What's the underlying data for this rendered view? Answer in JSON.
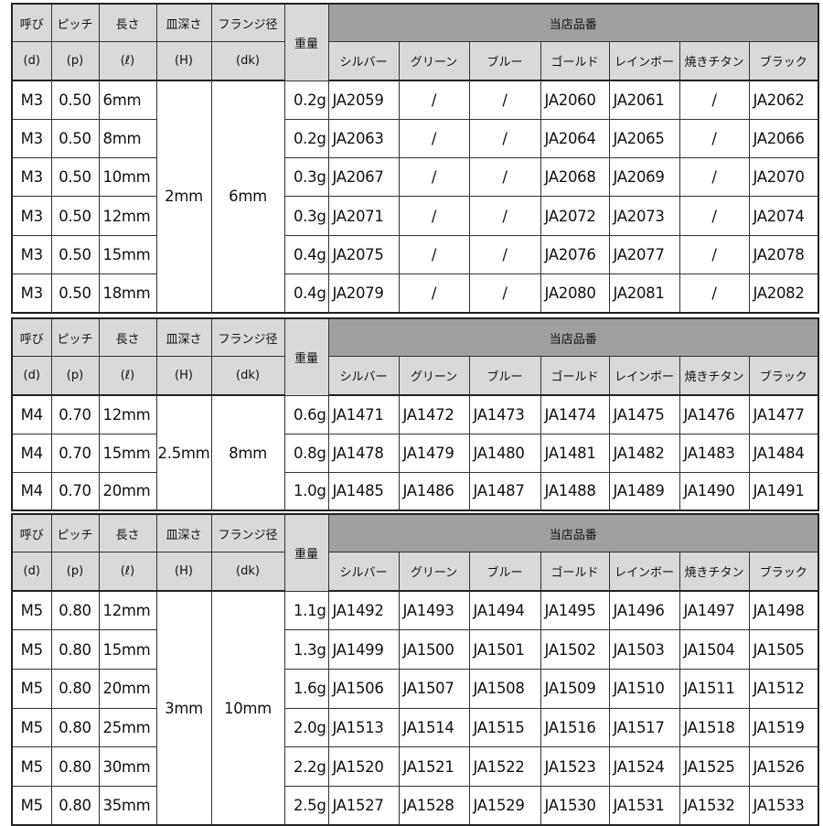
{
  "header": {
    "nominal": "呼び",
    "nominal_sym": "(d)",
    "pitch": "ピッチ",
    "pitch_sym": "(p)",
    "length": "長さ",
    "length_sym": "(ℓ)",
    "depth": "皿深さ",
    "depth_sym": "(H)",
    "flange": "フランジ径",
    "flange_sym": "(dk)",
    "weight": "重量",
    "store_code": "当店品番",
    "colors": [
      "シルバー",
      "グリーン",
      "ブルー",
      "ゴールド",
      "レインボー",
      "焼きチタン",
      "ブラック"
    ]
  },
  "colors": {
    "header_light": "#d9d9d9",
    "header_dark": "#a0a0a0",
    "border": "#222222"
  },
  "tables": [
    {
      "depth": "2mm",
      "flange": "6mm",
      "rows": [
        {
          "d": "M3",
          "p": "0.50",
          "l": "6mm",
          "w": "0.2g",
          "codes": [
            "JA2059",
            "/",
            "/",
            "JA2060",
            "JA2061",
            "/",
            "JA2062"
          ]
        },
        {
          "d": "M3",
          "p": "0.50",
          "l": "8mm",
          "w": "0.2g",
          "codes": [
            "JA2063",
            "/",
            "/",
            "JA2064",
            "JA2065",
            "/",
            "JA2066"
          ]
        },
        {
          "d": "M3",
          "p": "0.50",
          "l": "10mm",
          "w": "0.3g",
          "codes": [
            "JA2067",
            "/",
            "/",
            "JA2068",
            "JA2069",
            "/",
            "JA2070"
          ]
        },
        {
          "d": "M3",
          "p": "0.50",
          "l": "12mm",
          "w": "0.3g",
          "codes": [
            "JA2071",
            "/",
            "/",
            "JA2072",
            "JA2073",
            "/",
            "JA2074"
          ]
        },
        {
          "d": "M3",
          "p": "0.50",
          "l": "15mm",
          "w": "0.4g",
          "codes": [
            "JA2075",
            "/",
            "/",
            "JA2076",
            "JA2077",
            "/",
            "JA2078"
          ]
        },
        {
          "d": "M3",
          "p": "0.50",
          "l": "18mm",
          "w": "0.4g",
          "codes": [
            "JA2079",
            "/",
            "/",
            "JA2080",
            "JA2081",
            "/",
            "JA2082"
          ]
        }
      ]
    },
    {
      "depth": "2.5mm",
      "flange": "8mm",
      "rows": [
        {
          "d": "M4",
          "p": "0.70",
          "l": "12mm",
          "w": "0.6g",
          "codes": [
            "JA1471",
            "JA1472",
            "JA1473",
            "JA1474",
            "JA1475",
            "JA1476",
            "JA1477"
          ]
        },
        {
          "d": "M4",
          "p": "0.70",
          "l": "15mm",
          "w": "0.8g",
          "codes": [
            "JA1478",
            "JA1479",
            "JA1480",
            "JA1481",
            "JA1482",
            "JA1483",
            "JA1484"
          ]
        },
        {
          "d": "M4",
          "p": "0.70",
          "l": "20mm",
          "w": "1.0g",
          "codes": [
            "JA1485",
            "JA1486",
            "JA1487",
            "JA1488",
            "JA1489",
            "JA1490",
            "JA1491"
          ]
        }
      ]
    },
    {
      "depth": "3mm",
      "flange": "10mm",
      "rows": [
        {
          "d": "M5",
          "p": "0.80",
          "l": "12mm",
          "w": "1.1g",
          "codes": [
            "JA1492",
            "JA1493",
            "JA1494",
            "JA1495",
            "JA1496",
            "JA1497",
            "JA1498"
          ]
        },
        {
          "d": "M5",
          "p": "0.80",
          "l": "15mm",
          "w": "1.3g",
          "codes": [
            "JA1499",
            "JA1500",
            "JA1501",
            "JA1502",
            "JA1503",
            "JA1504",
            "JA1505"
          ]
        },
        {
          "d": "M5",
          "p": "0.80",
          "l": "20mm",
          "w": "1.6g",
          "codes": [
            "JA1506",
            "JA1507",
            "JA1508",
            "JA1509",
            "JA1510",
            "JA1511",
            "JA1512"
          ]
        },
        {
          "d": "M5",
          "p": "0.80",
          "l": "25mm",
          "w": "2.0g",
          "codes": [
            "JA1513",
            "JA1514",
            "JA1515",
            "JA1516",
            "JA1517",
            "JA1518",
            "JA1519"
          ]
        },
        {
          "d": "M5",
          "p": "0.80",
          "l": "30mm",
          "w": "2.2g",
          "codes": [
            "JA1520",
            "JA1521",
            "JA1522",
            "JA1523",
            "JA1524",
            "JA1525",
            "JA1526"
          ]
        },
        {
          "d": "M5",
          "p": "0.80",
          "l": "35mm",
          "w": "2.5g",
          "codes": [
            "JA1527",
            "JA1528",
            "JA1529",
            "JA1530",
            "JA1531",
            "JA1532",
            "JA1533"
          ]
        }
      ]
    }
  ]
}
